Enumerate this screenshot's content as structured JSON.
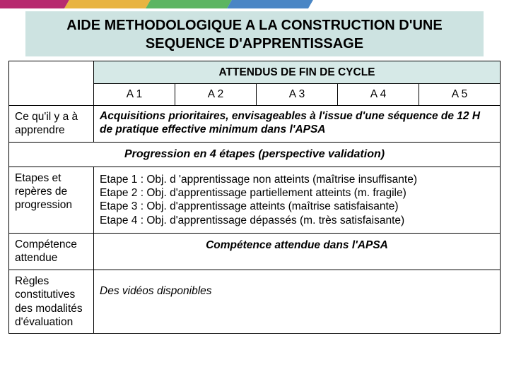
{
  "colors": {
    "title_bg": "#cde3e1",
    "header_bg": "#d6e9e7",
    "stripe1": "#b72a6f",
    "stripe2": "#e8b441",
    "stripe3": "#5cb562",
    "stripe4": "#4a86c5",
    "border": "#000000",
    "text": "#000000",
    "bg": "#ffffff"
  },
  "typography": {
    "family": "Arial",
    "title_size_pt": 20,
    "header_size_pt": 17,
    "body_size_pt": 15,
    "label_size_pt": 14
  },
  "title": "AIDE METHODOLOGIQUE A LA CONSTRUCTION D'UNE SEQUENCE D'APPRENTISSAGE",
  "table": {
    "header_main": "ATTENDUS DE FIN DE CYCLE",
    "a_cols": [
      "A 1",
      "A 2",
      "A 3",
      "A 4",
      "A 5"
    ],
    "rows": {
      "r1_label": "Ce qu'il y a à apprendre",
      "r1_text": "Acquisitions prioritaires, envisageables à l'issue d'une séquence de 12 H de pratique effective minimum dans l'APSA",
      "progression_header": "Progression en 4 étapes (perspective validation)",
      "r2_label": "Etapes et repères de progression",
      "r2_lines": [
        "Etape 1 : Obj. d 'apprentissage non atteints (maîtrise insuffisante)",
        "Etape 2 : Obj. d'apprentissage partiellement atteints (m. fragile)",
        "Etape 3 : Obj. d'apprentissage atteints (maîtrise satisfaisante)",
        "Etape 4 : Obj. d'apprentissage dépassés (m. très satisfaisante)"
      ],
      "r3_label": "Compétence attendue",
      "r3_text": "Compétence attendue dans l'APSA",
      "r4_label": "Règles constitutives des modalités d'évaluation",
      "r4_text": "Des vidéos disponibles"
    }
  }
}
